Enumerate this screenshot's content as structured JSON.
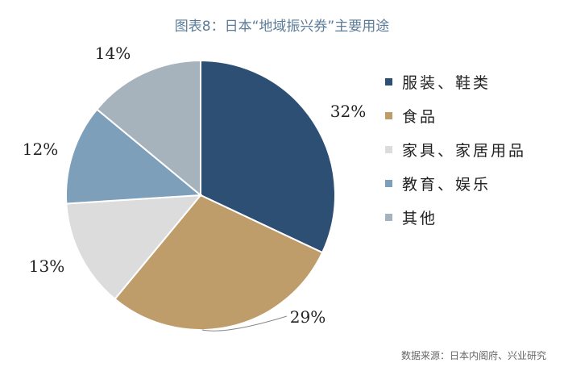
{
  "title": "图表8：日本“地域振兴券”主要用途",
  "source": "数据来源：日本内阁府、兴业研究",
  "chart_data": {
    "type": "pie",
    "title": "图表8：日本“地域振兴券”主要用途",
    "slices": [
      {
        "label": "服装、鞋类",
        "value": 32,
        "display": "32%",
        "color": "#2d4f74"
      },
      {
        "label": "食品",
        "value": 29,
        "display": "29%",
        "color": "#bf9d6b"
      },
      {
        "label": "家具、家居用品",
        "value": 13,
        "display": "13%",
        "color": "#dcdcdc"
      },
      {
        "label": "教育、娱乐",
        "value": 12,
        "display": "12%",
        "color": "#7d9fba"
      },
      {
        "label": "其他",
        "value": 14,
        "display": "14%",
        "color": "#a6b3bd"
      }
    ],
    "start_angle_deg": 0,
    "direction": "clockwise",
    "legend_position": "right"
  }
}
